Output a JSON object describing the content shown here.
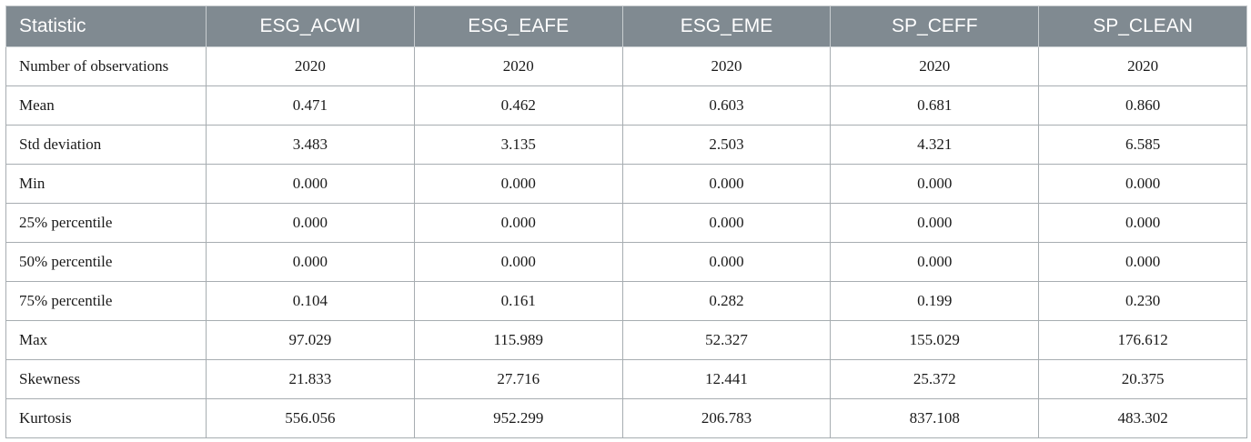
{
  "table": {
    "headers": [
      "Statistic",
      "ESG_ACWI",
      "ESG_EAFE",
      "ESG_EME",
      "SP_CEFF",
      "SP_CLEAN"
    ],
    "rows": [
      [
        "Number of observations",
        "2020",
        "2020",
        "2020",
        "2020",
        "2020"
      ],
      [
        "Mean",
        "0.471",
        "0.462",
        "0.603",
        "0.681",
        "0.860"
      ],
      [
        "Std deviation",
        "3.483",
        "3.135",
        "2.503",
        "4.321",
        "6.585"
      ],
      [
        "Min",
        "0.000",
        "0.000",
        "0.000",
        "0.000",
        "0.000"
      ],
      [
        "25% percentile",
        "0.000",
        "0.000",
        "0.000",
        "0.000",
        "0.000"
      ],
      [
        "50% percentile",
        "0.000",
        "0.000",
        "0.000",
        "0.000",
        "0.000"
      ],
      [
        "75% percentile",
        "0.104",
        "0.161",
        "0.282",
        "0.199",
        "0.230"
      ],
      [
        "Max",
        "97.029",
        "115.989",
        "52.327",
        "155.029",
        "176.612"
      ],
      [
        "Skewness",
        "21.833",
        "27.716",
        "12.441",
        "25.372",
        "20.375"
      ],
      [
        "Kurtosis",
        "556.056",
        "952.299",
        "206.783",
        "837.108",
        "483.302"
      ]
    ],
    "colors": {
      "header_bg": "#808a91",
      "header_text": "#ffffff",
      "border": "#a7adb1"
    }
  }
}
